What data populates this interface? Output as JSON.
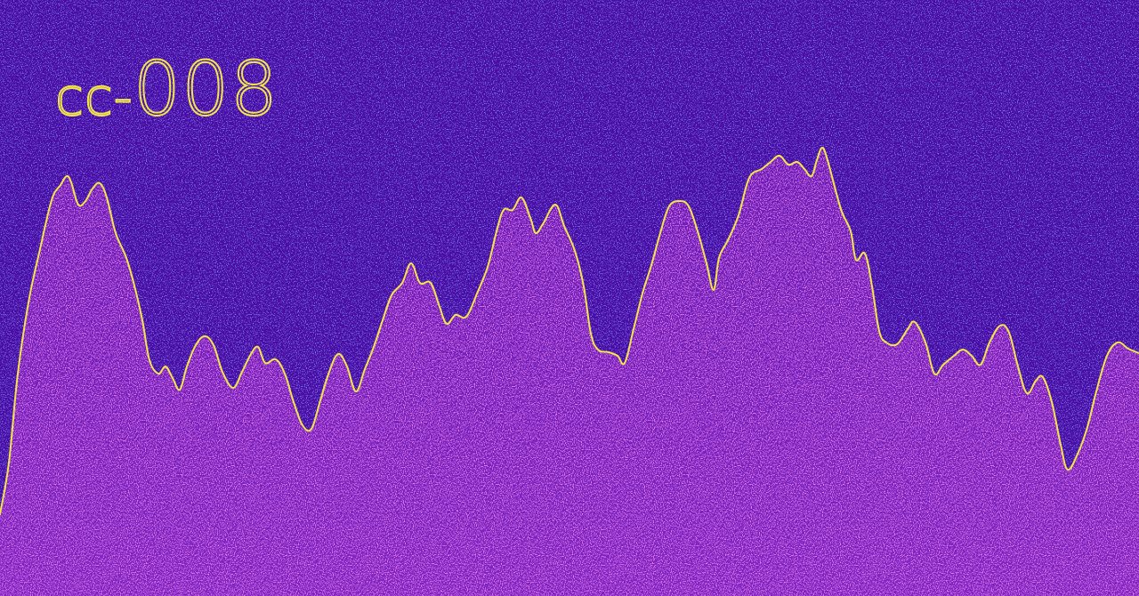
{
  "title": {
    "prefix": "cc",
    "dash": "-",
    "number": "008"
  },
  "colors": {
    "sky": "#4a0aa3",
    "sky_speckle": "#2f3fe0",
    "fill": "#6a1fb3",
    "fill_speckle": "#d733e0",
    "line": "#f2e64a"
  }
}
